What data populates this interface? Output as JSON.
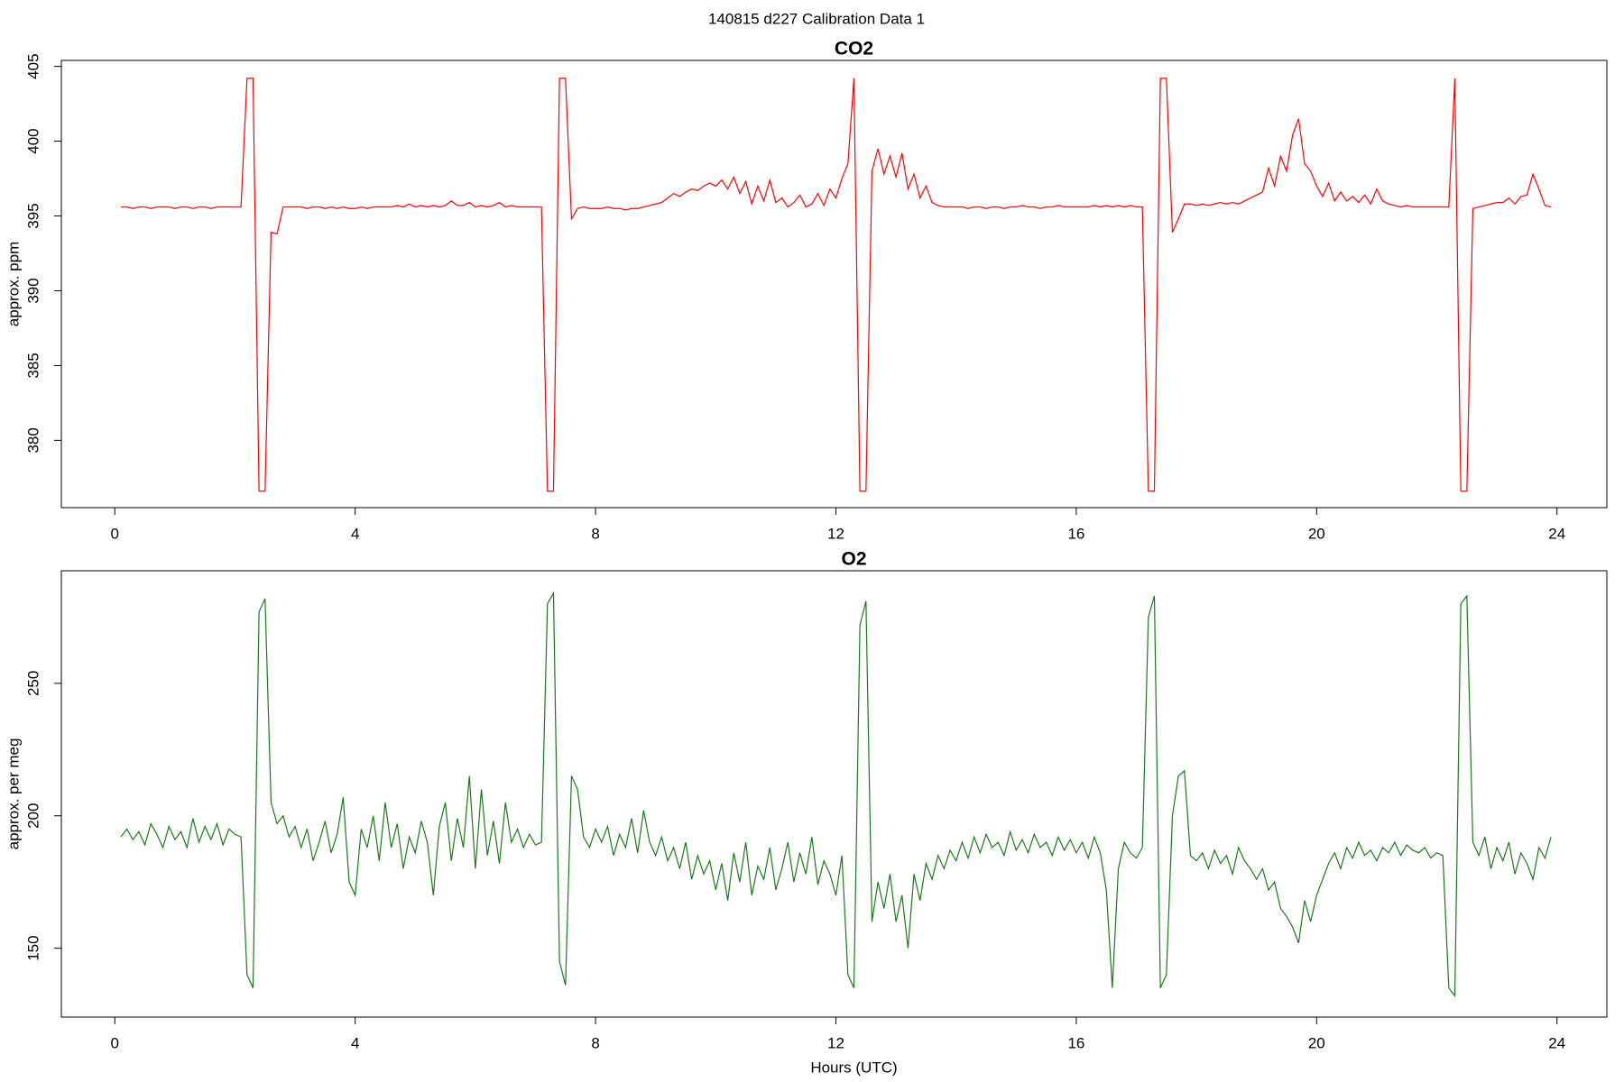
{
  "title": "140815   d227   Calibration Data 1",
  "chart_data": [
    {
      "type": "line",
      "title": "CO2",
      "y_label": "approx. ppm",
      "color": "#ff0000",
      "xlim": [
        -0.89,
        24.83
      ],
      "xticks": [
        0,
        4,
        8,
        12,
        16,
        20,
        24
      ],
      "ylim": [
        375.5,
        405.4
      ],
      "yticks": [
        380,
        385,
        390,
        395,
        400,
        405
      ],
      "x": [
        0.1,
        0.2,
        0.3,
        0.4,
        0.5,
        0.6,
        0.7,
        0.8,
        0.9,
        1.0,
        1.1,
        1.2,
        1.3,
        1.4,
        1.5,
        1.6,
        1.7,
        1.8,
        1.9,
        2.0,
        2.1,
        2.2,
        2.3,
        2.4,
        2.5,
        2.6,
        2.7,
        2.8,
        2.9,
        3.0,
        3.1,
        3.2,
        3.3,
        3.4,
        3.5,
        3.6,
        3.7,
        3.8,
        3.9,
        4.0,
        4.1,
        4.2,
        4.3,
        4.4,
        4.5,
        4.6,
        4.7,
        4.8,
        4.9,
        5.0,
        5.1,
        5.2,
        5.3,
        5.4,
        5.5,
        5.6,
        5.7,
        5.8,
        5.9,
        6.0,
        6.1,
        6.2,
        6.3,
        6.4,
        6.5,
        6.6,
        6.7,
        6.8,
        6.9,
        7.0,
        7.1,
        7.2,
        7.3,
        7.4,
        7.5,
        7.6,
        7.7,
        7.8,
        7.9,
        8.0,
        8.1,
        8.2,
        8.3,
        8.4,
        8.5,
        8.6,
        8.7,
        8.8,
        8.9,
        9.0,
        9.1,
        9.2,
        9.3,
        9.4,
        9.5,
        9.6,
        9.7,
        9.8,
        9.9,
        10.0,
        10.1,
        10.2,
        10.3,
        10.4,
        10.5,
        10.6,
        10.7,
        10.8,
        10.9,
        11.0,
        11.1,
        11.2,
        11.3,
        11.4,
        11.5,
        11.6,
        11.7,
        11.8,
        11.9,
        12.0,
        12.1,
        12.2,
        12.3,
        12.4,
        12.5,
        12.6,
        12.7,
        12.8,
        12.9,
        13.0,
        13.1,
        13.2,
        13.3,
        13.4,
        13.5,
        13.6,
        13.7,
        13.8,
        13.9,
        14.0,
        14.1,
        14.2,
        14.3,
        14.4,
        14.5,
        14.6,
        14.7,
        14.8,
        14.9,
        15.0,
        15.1,
        15.2,
        15.3,
        15.4,
        15.5,
        15.6,
        15.7,
        15.8,
        15.9,
        16.0,
        16.1,
        16.2,
        16.3,
        16.4,
        16.5,
        16.6,
        16.7,
        16.8,
        16.9,
        17.0,
        17.1,
        17.2,
        17.3,
        17.4,
        17.5,
        17.6,
        17.7,
        17.8,
        17.9,
        18.0,
        18.1,
        18.2,
        18.3,
        18.4,
        18.5,
        18.6,
        18.7,
        18.8,
        18.9,
        19.0,
        19.1,
        19.2,
        19.3,
        19.4,
        19.5,
        19.6,
        19.7,
        19.8,
        19.9,
        20.0,
        20.1,
        20.2,
        20.3,
        20.4,
        20.5,
        20.6,
        20.7,
        20.8,
        20.9,
        21.0,
        21.1,
        21.2,
        21.3,
        21.4,
        21.5,
        21.6,
        21.7,
        21.8,
        21.9,
        22.0,
        22.1,
        22.2,
        22.3,
        22.4,
        22.5,
        22.6,
        22.7,
        22.8,
        22.9,
        23.0,
        23.1,
        23.2,
        23.3,
        23.4,
        23.5,
        23.6,
        23.7,
        23.8,
        23.9
      ],
      "values": [
        395.6,
        395.6,
        395.5,
        395.6,
        395.6,
        395.5,
        395.6,
        395.6,
        395.6,
        395.5,
        395.6,
        395.6,
        395.5,
        395.6,
        395.6,
        395.5,
        395.6,
        395.6,
        395.6,
        395.6,
        395.6,
        404.2,
        404.2,
        376.6,
        376.6,
        393.9,
        393.8,
        395.6,
        395.6,
        395.6,
        395.6,
        395.5,
        395.6,
        395.6,
        395.5,
        395.6,
        395.5,
        395.6,
        395.5,
        395.5,
        395.6,
        395.5,
        395.6,
        395.6,
        395.6,
        395.6,
        395.7,
        395.6,
        395.8,
        395.6,
        395.7,
        395.6,
        395.7,
        395.6,
        395.7,
        396.0,
        395.7,
        395.7,
        395.9,
        395.6,
        395.7,
        395.6,
        395.7,
        395.9,
        395.6,
        395.7,
        395.6,
        395.6,
        395.6,
        395.6,
        395.6,
        376.6,
        376.6,
        404.2,
        404.2,
        394.8,
        395.5,
        395.6,
        395.5,
        395.5,
        395.5,
        395.6,
        395.5,
        395.5,
        395.4,
        395.5,
        395.5,
        395.6,
        395.7,
        395.8,
        395.9,
        396.2,
        396.5,
        396.3,
        396.6,
        396.8,
        396.7,
        397.0,
        397.2,
        397.0,
        397.4,
        396.8,
        397.6,
        396.5,
        397.3,
        395.8,
        397.0,
        396.0,
        397.4,
        395.9,
        396.2,
        395.6,
        395.9,
        396.4,
        395.6,
        395.8,
        396.5,
        395.7,
        396.8,
        396.2,
        397.5,
        398.5,
        404.2,
        376.6,
        376.6,
        398.0,
        399.5,
        397.8,
        399.0,
        397.6,
        399.2,
        396.8,
        397.8,
        396.2,
        397.0,
        395.9,
        395.7,
        395.6,
        395.6,
        395.6,
        395.6,
        395.5,
        395.6,
        395.6,
        395.5,
        395.6,
        395.6,
        395.5,
        395.6,
        395.6,
        395.7,
        395.6,
        395.6,
        395.5,
        395.6,
        395.6,
        395.7,
        395.6,
        395.6,
        395.6,
        395.6,
        395.6,
        395.7,
        395.6,
        395.7,
        395.6,
        395.7,
        395.6,
        395.7,
        395.6,
        395.6,
        376.6,
        376.6,
        404.2,
        404.2,
        393.9,
        394.8,
        395.8,
        395.8,
        395.7,
        395.8,
        395.7,
        395.8,
        395.9,
        395.8,
        395.9,
        395.8,
        396.0,
        396.2,
        396.4,
        396.6,
        398.2,
        397.0,
        399.0,
        398.0,
        400.4,
        401.5,
        398.5,
        398.0,
        397.0,
        396.3,
        397.2,
        396.0,
        396.6,
        396.0,
        396.3,
        395.9,
        396.4,
        395.8,
        396.8,
        396.0,
        395.8,
        395.7,
        395.6,
        395.7,
        395.6,
        395.6,
        395.6,
        395.6,
        395.6,
        395.6,
        395.6,
        404.2,
        376.6,
        376.6,
        395.5,
        395.6,
        395.7,
        395.8,
        395.9,
        395.9,
        396.2,
        395.8,
        396.3,
        396.4,
        397.8,
        396.8,
        395.7,
        395.6
      ]
    },
    {
      "type": "line",
      "title": "O2",
      "y_label": "approx. per meg",
      "x_label": "Hours (UTC)",
      "color": "#1a7a1a",
      "xlim": [
        -0.89,
        24.83
      ],
      "xticks": [
        0,
        4,
        8,
        12,
        16,
        20,
        24
      ],
      "ylim": [
        124,
        292.5
      ],
      "yticks": [
        150,
        200,
        250
      ],
      "x": [
        0.1,
        0.2,
        0.3,
        0.4,
        0.5,
        0.6,
        0.7,
        0.8,
        0.9,
        1.0,
        1.1,
        1.2,
        1.3,
        1.4,
        1.5,
        1.6,
        1.7,
        1.8,
        1.9,
        2.0,
        2.1,
        2.2,
        2.3,
        2.4,
        2.5,
        2.6,
        2.7,
        2.8,
        2.9,
        3.0,
        3.1,
        3.2,
        3.3,
        3.4,
        3.5,
        3.6,
        3.7,
        3.8,
        3.9,
        4.0,
        4.1,
        4.2,
        4.3,
        4.4,
        4.5,
        4.6,
        4.7,
        4.8,
        4.9,
        5.0,
        5.1,
        5.2,
        5.3,
        5.4,
        5.5,
        5.6,
        5.7,
        5.8,
        5.9,
        6.0,
        6.1,
        6.2,
        6.3,
        6.4,
        6.5,
        6.6,
        6.7,
        6.8,
        6.9,
        7.0,
        7.1,
        7.2,
        7.3,
        7.4,
        7.5,
        7.6,
        7.7,
        7.8,
        7.9,
        8.0,
        8.1,
        8.2,
        8.3,
        8.4,
        8.5,
        8.6,
        8.7,
        8.8,
        8.9,
        9.0,
        9.1,
        9.2,
        9.3,
        9.4,
        9.5,
        9.6,
        9.7,
        9.8,
        9.9,
        10.0,
        10.1,
        10.2,
        10.3,
        10.4,
        10.5,
        10.6,
        10.7,
        10.8,
        10.9,
        11.0,
        11.1,
        11.2,
        11.3,
        11.4,
        11.5,
        11.6,
        11.7,
        11.8,
        11.9,
        12.0,
        12.1,
        12.2,
        12.3,
        12.4,
        12.5,
        12.6,
        12.7,
        12.8,
        12.9,
        13.0,
        13.1,
        13.2,
        13.3,
        13.4,
        13.5,
        13.6,
        13.7,
        13.8,
        13.9,
        14.0,
        14.1,
        14.2,
        14.3,
        14.4,
        14.5,
        14.6,
        14.7,
        14.8,
        14.9,
        15.0,
        15.1,
        15.2,
        15.3,
        15.4,
        15.5,
        15.6,
        15.7,
        15.8,
        15.9,
        16.0,
        16.1,
        16.2,
        16.3,
        16.4,
        16.5,
        16.6,
        16.7,
        16.8,
        16.9,
        17.0,
        17.1,
        17.2,
        17.3,
        17.4,
        17.5,
        17.6,
        17.7,
        17.8,
        17.9,
        18.0,
        18.1,
        18.2,
        18.3,
        18.4,
        18.5,
        18.6,
        18.7,
        18.8,
        18.9,
        19.0,
        19.1,
        19.2,
        19.3,
        19.4,
        19.5,
        19.6,
        19.7,
        19.8,
        19.9,
        20.0,
        20.1,
        20.2,
        20.3,
        20.4,
        20.5,
        20.6,
        20.7,
        20.8,
        20.9,
        21.0,
        21.1,
        21.2,
        21.3,
        21.4,
        21.5,
        21.6,
        21.7,
        21.8,
        21.9,
        22.0,
        22.1,
        22.2,
        22.3,
        22.4,
        22.5,
        22.6,
        22.7,
        22.8,
        22.9,
        23.0,
        23.1,
        23.2,
        23.3,
        23.4,
        23.5,
        23.6,
        23.7,
        23.8,
        23.9
      ],
      "values": [
        192,
        195,
        191,
        194,
        189,
        197,
        193,
        188,
        196,
        191,
        194,
        188,
        199,
        190,
        196,
        191,
        197,
        189,
        195,
        193,
        192,
        140,
        135,
        277,
        282,
        205,
        197,
        200,
        192,
        196,
        188,
        195,
        183,
        190,
        198,
        186,
        193,
        207,
        175,
        170,
        195,
        188,
        200,
        183,
        205,
        188,
        197,
        180,
        192,
        186,
        198,
        190,
        170,
        196,
        205,
        183,
        199,
        188,
        215,
        180,
        210,
        185,
        198,
        182,
        205,
        190,
        195,
        188,
        193,
        189,
        190,
        280,
        284,
        145,
        136,
        215,
        210,
        192,
        188,
        195,
        190,
        196,
        185,
        193,
        188,
        199,
        186,
        202,
        190,
        185,
        192,
        183,
        188,
        180,
        190,
        176,
        185,
        178,
        183,
        172,
        182,
        168,
        186,
        175,
        190,
        170,
        181,
        176,
        188,
        172,
        180,
        190,
        175,
        186,
        178,
        192,
        174,
        183,
        178,
        170,
        185,
        140,
        135,
        272,
        281,
        160,
        175,
        165,
        178,
        160,
        170,
        150,
        178,
        168,
        182,
        176,
        185,
        180,
        187,
        183,
        190,
        184,
        192,
        186,
        193,
        188,
        190,
        185,
        194,
        187,
        191,
        186,
        193,
        188,
        190,
        185,
        192,
        187,
        191,
        186,
        190,
        184,
        192,
        186,
        172,
        135,
        180,
        190,
        186,
        184,
        188,
        275,
        283,
        135,
        140,
        200,
        215,
        217,
        185,
        183,
        186,
        180,
        187,
        182,
        185,
        178,
        188,
        183,
        180,
        176,
        180,
        172,
        175,
        165,
        162,
        158,
        152,
        168,
        160,
        170,
        176,
        182,
        186,
        180,
        188,
        184,
        190,
        185,
        187,
        183,
        188,
        186,
        190,
        185,
        189,
        187,
        186,
        188,
        184,
        186,
        185,
        135,
        132,
        280,
        283,
        190,
        185,
        192,
        180,
        188,
        183,
        190,
        178,
        186,
        182,
        176,
        188,
        184,
        192
      ]
    }
  ]
}
